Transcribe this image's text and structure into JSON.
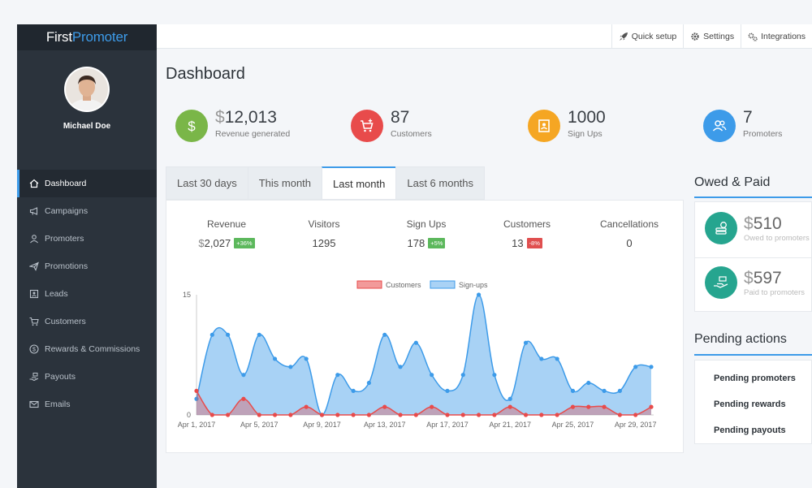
{
  "app": {
    "logo_first": "First",
    "logo_second": "Promoter"
  },
  "user": {
    "name": "Michael Doe"
  },
  "sidebar": {
    "items": [
      {
        "label": "Dashboard",
        "icon": "home-icon"
      },
      {
        "label": "Campaigns",
        "icon": "megaphone-icon"
      },
      {
        "label": "Promoters",
        "icon": "users-icon"
      },
      {
        "label": "Promotions",
        "icon": "paper-plane-icon"
      },
      {
        "label": "Leads",
        "icon": "contact-card-icon"
      },
      {
        "label": "Customers",
        "icon": "cart-icon"
      },
      {
        "label": "Rewards & Commissions",
        "icon": "dollar-circle-icon"
      },
      {
        "label": "Payouts",
        "icon": "hand-cash-icon"
      },
      {
        "label": "Emails",
        "icon": "envelope-icon"
      }
    ]
  },
  "topbar": {
    "quick_setup": "Quick setup",
    "settings": "Settings",
    "integrations": "Integrations"
  },
  "page": {
    "title": "Dashboard"
  },
  "stats": {
    "revenue": {
      "currency": "$",
      "value": "12,013",
      "label": "Revenue generated",
      "color": "#7ab648"
    },
    "customers": {
      "value": "87",
      "label": "Customers",
      "color": "#e84b4b"
    },
    "signups": {
      "value": "1000",
      "label": "Sign Ups",
      "color": "#f5a623"
    },
    "promoters": {
      "value": "7",
      "label": "Promoters",
      "color": "#3d9be9"
    }
  },
  "tabs": [
    "Last 30 days",
    "This month",
    "Last month",
    "Last 6 months"
  ],
  "metrics": {
    "revenue": {
      "label": "Revenue",
      "currency": "$",
      "value": "2,027",
      "badge": "+36%"
    },
    "visitors": {
      "label": "Visitors",
      "value": "1295"
    },
    "signups": {
      "label": "Sign Ups",
      "value": "178",
      "badge": "+5%"
    },
    "customers": {
      "label": "Customers",
      "value": "13",
      "badge": "-8%"
    },
    "cancellations": {
      "label": "Cancellations",
      "value": "0"
    }
  },
  "chart_data": {
    "type": "area",
    "legend": [
      "Customers",
      "Sign-ups"
    ],
    "colors": {
      "customers": "#e84b4b",
      "signups": "#3d9be9"
    },
    "x_ticks": [
      "Apr 1, 2017",
      "Apr 5, 2017",
      "Apr 9, 2017",
      "Apr 13, 2017",
      "Apr 17, 2017",
      "Apr 21, 2017",
      "Apr 25, 2017",
      "Apr 29, 2017"
    ],
    "y_ticks": [
      "0",
      "15"
    ],
    "ylim": [
      0,
      15
    ],
    "series": [
      {
        "name": "Sign-ups",
        "values": [
          2,
          10,
          10,
          5,
          10,
          7,
          6,
          7,
          0,
          5,
          3,
          4,
          10,
          6,
          9,
          5,
          3,
          5,
          15,
          5,
          2,
          9,
          7,
          7,
          3,
          4,
          3,
          3,
          6,
          6
        ]
      },
      {
        "name": "Customers",
        "values": [
          3,
          0,
          0,
          2,
          0,
          0,
          0,
          1,
          0,
          0,
          0,
          0,
          1,
          0,
          0,
          1,
          0,
          0,
          0,
          0,
          1,
          0,
          0,
          0,
          1,
          1,
          1,
          0,
          0,
          1
        ]
      }
    ]
  },
  "owed_paid": {
    "title": "Owed & Paid",
    "owed": {
      "currency": "$",
      "value": "510",
      "label": "Owed to promoters"
    },
    "paid": {
      "currency": "$",
      "value": "597",
      "label": "Paid to promoters"
    }
  },
  "pending": {
    "title": "Pending actions",
    "items": [
      "Pending promoters",
      "Pending rewards",
      "Pending payouts"
    ]
  }
}
